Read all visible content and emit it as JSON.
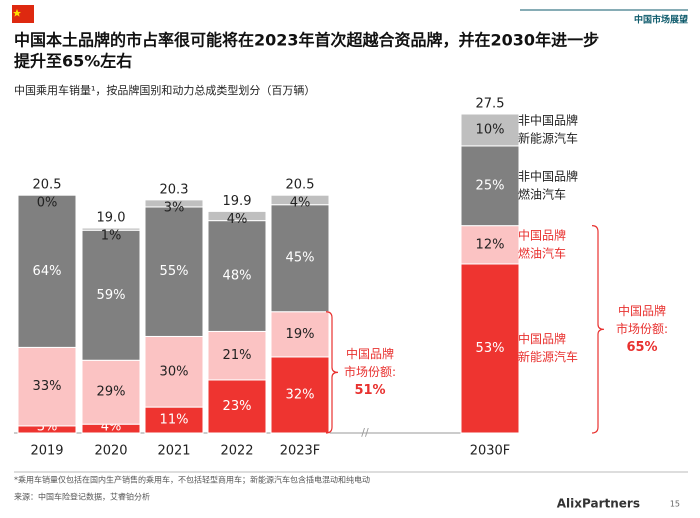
{
  "header": "中国市场展望",
  "chart_data": {
    "type": "stacked-bar",
    "title": [
      "中国本土品牌的市占率很可能将在2023年首次超越合资品牌，并在2030年进一步",
      "提升至65%左右"
    ],
    "subtitle": "中国乘用车销量¹，按品牌国别和动力总成类型划分（百万辆）",
    "categories": [
      "2019",
      "2020",
      "2021",
      "2022",
      "2023F",
      "2030F"
    ],
    "totals": {
      "values": [
        20.5,
        19.0,
        20.3,
        19.9,
        20.5,
        27.5
      ],
      "value_labels": [
        "20.5",
        "19.0",
        "20.3",
        "19.9",
        "20.5",
        "27.5"
      ]
    },
    "series": [
      {
        "name": [
          "中国品牌",
          "新能源汽车"
        ],
        "color": "#ee3430",
        "text_color": "#ffffff",
        "name_color": "#e8312f",
        "values": [
          3,
          4,
          11,
          23,
          32,
          53
        ],
        "value_labels": [
          "3%",
          "4%",
          "11%",
          "23%",
          "32%",
          "53%"
        ]
      },
      {
        "name": [
          "中国品牌",
          "燃油汽车"
        ],
        "color": "#fbc3c3",
        "text_color": "#222222",
        "name_color": "#e8312f",
        "values": [
          33,
          29,
          30,
          21,
          19,
          12
        ],
        "value_labels": [
          "33%",
          "29%",
          "30%",
          "21%",
          "19%",
          "12%"
        ]
      },
      {
        "name": [
          "非中国品牌",
          "燃油汽车"
        ],
        "color": "#808080",
        "text_color": "#ffffff",
        "name_color": "#222222",
        "values": [
          64,
          59,
          55,
          48,
          45,
          25
        ],
        "value_labels": [
          "64%",
          "59%",
          "55%",
          "48%",
          "45%",
          "25%"
        ]
      },
      {
        "name": [
          "非中国品牌",
          "新能源汽车"
        ],
        "color": "#bfbfbf",
        "text_color": "#222222",
        "name_color": "#222222",
        "values": [
          0,
          1,
          3,
          4,
          4,
          10
        ],
        "value_labels": [
          "0%",
          "1%",
          "3%",
          "4%",
          "4%",
          "10%"
        ]
      }
    ],
    "annotations": [
      {
        "lines": [
          "中国品牌",
          "市场份额:"
        ],
        "value": 51,
        "value_label": "51%"
      },
      {
        "lines": [
          "中国品牌",
          "市场份额:"
        ],
        "value": 65,
        "value_label": "65%"
      }
    ]
  },
  "footnote": "*乘用车销量仅包括在国内生产销售的乘用车，不包括轻型商用车；新能源汽车包含插电混动和纯电动",
  "source": "来源：中国车险登记数据，艾睿铂分析",
  "logo": "AlixPartners",
  "page": "15"
}
